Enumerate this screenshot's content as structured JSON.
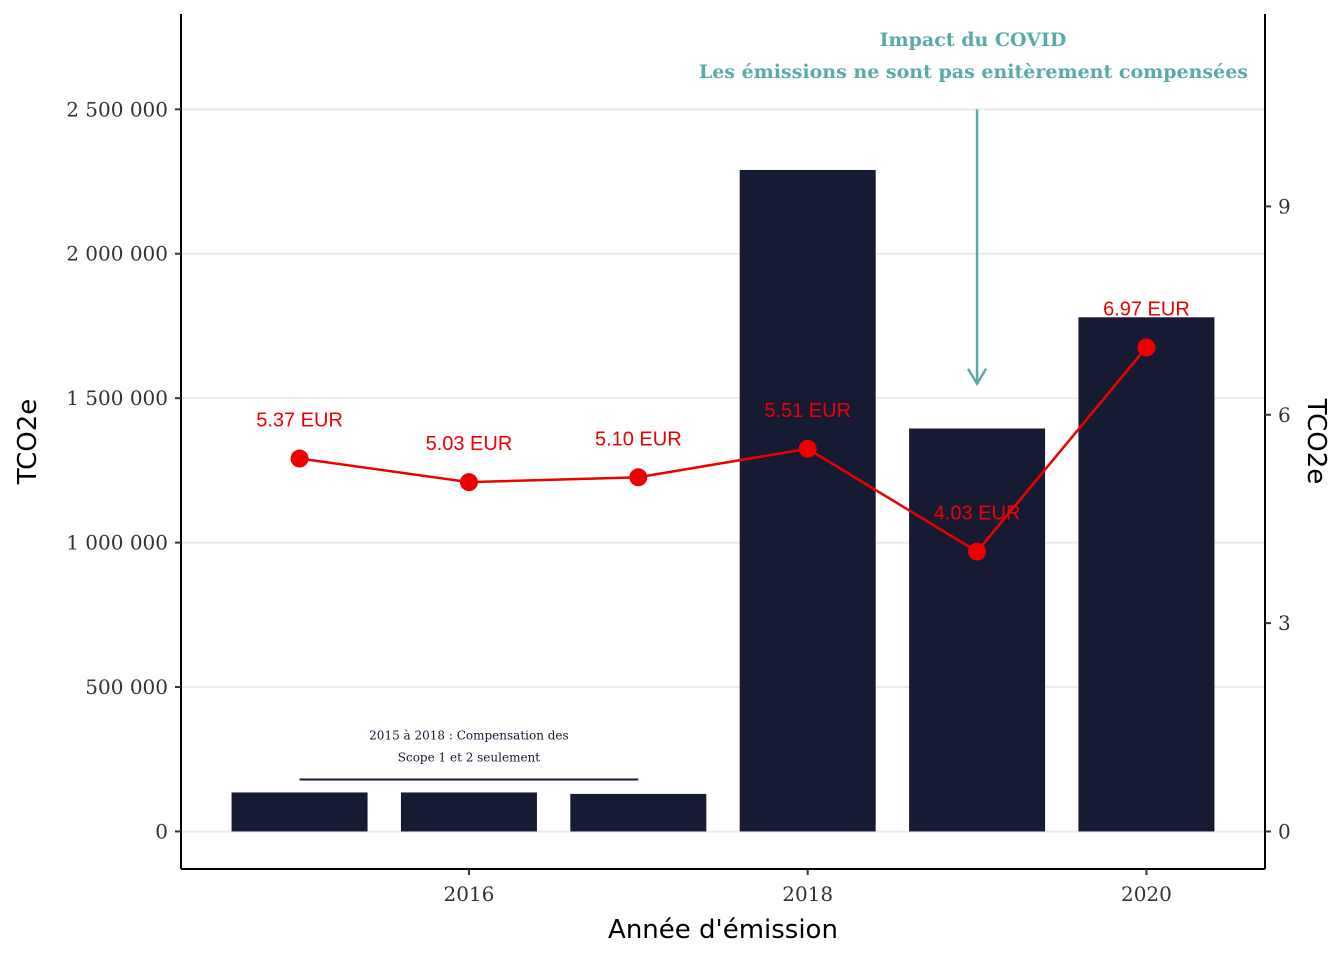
{
  "chart_data": {
    "type": "bar",
    "xlabel": "Année d'émission",
    "ylabel": "TCO2e",
    "y2label": "TCO2e",
    "x": [
      2015,
      2016,
      2017,
      2018,
      2019,
      2020
    ],
    "x_ticks": [
      2016,
      2018,
      2020
    ],
    "x_tick_labels": [
      "2016",
      "2018",
      "2020"
    ],
    "xlim": [
      2014.3,
      2020.7
    ],
    "ylim": [
      -130000,
      2830000
    ],
    "y_ticks": [
      0,
      500000,
      1000000,
      1500000,
      2000000,
      2500000
    ],
    "y_tick_labels": [
      "0",
      "500 000",
      "1 000 000",
      "1 500 000",
      "2 000 000",
      "2 500 000"
    ],
    "y2lim": [
      -0.54,
      11.77
    ],
    "y2_ticks": [
      0,
      3,
      6,
      9
    ],
    "y2_tick_labels": [
      "0",
      "3",
      "6",
      "9"
    ],
    "grid": "horizontal",
    "series": [
      {
        "type": "bar",
        "axis": "left",
        "values": [
          135000,
          135000,
          130000,
          2290000,
          1395000,
          1780000
        ],
        "color": "#171a33"
      },
      {
        "type": "line",
        "axis": "right",
        "values": [
          5.37,
          5.03,
          5.1,
          5.51,
          4.03,
          6.97
        ],
        "labels": [
          "5.37 EUR",
          "5.03 EUR",
          "5.10 EUR",
          "5.51 EUR",
          "4.03 EUR",
          "6.97 EUR"
        ],
        "color": "#ee0000"
      }
    ],
    "annotations": [
      {
        "id": "scope",
        "lines": [
          "2015 à 2018 : Compensation des",
          "Scope 1 et 2 seulement"
        ],
        "x_from": 2015,
        "x_to": 2017,
        "y_bracket": 180000,
        "color": "#171a33"
      },
      {
        "id": "covid",
        "lines": [
          "Impact du COVID",
          "Les émissions ne sont pas enitèrement compensées"
        ],
        "arrow_x": 2019,
        "arrow_y_from": 2500000,
        "arrow_y_to": 1550000,
        "color": "#5aaba8"
      }
    ]
  }
}
